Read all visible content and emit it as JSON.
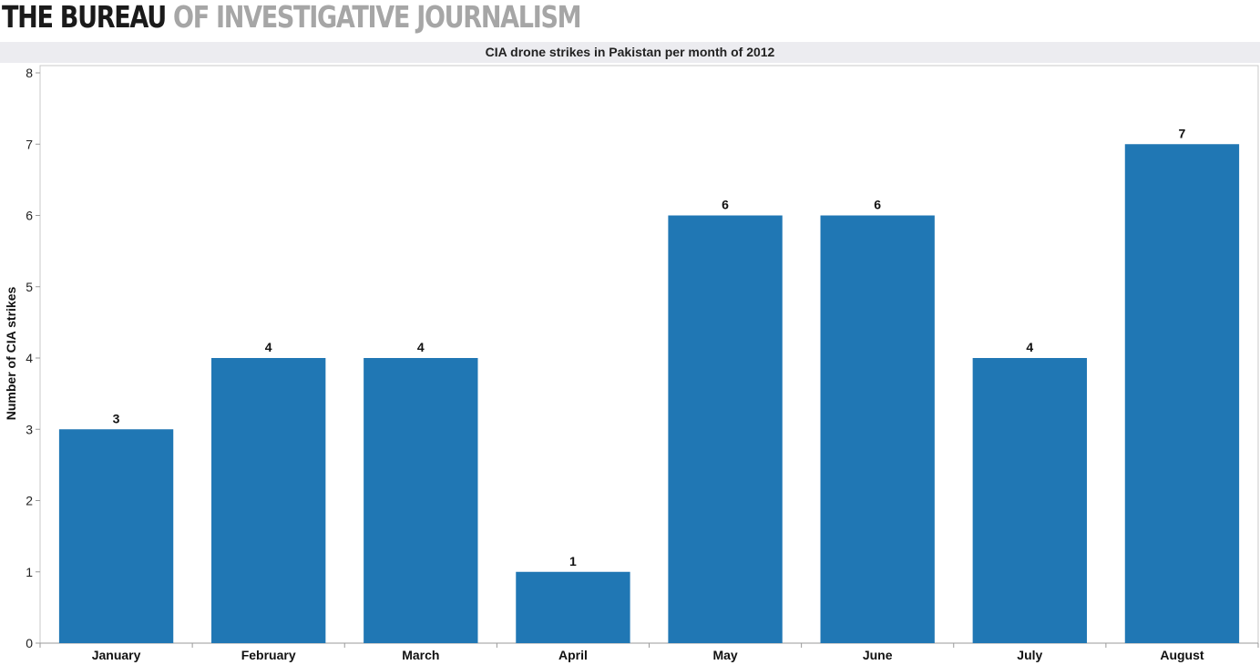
{
  "header": {
    "logo_bold": "THE BUREAU",
    "logo_light": " OF INVESTIGATIVE JOURNALISM"
  },
  "chart_data": {
    "type": "bar",
    "title": "CIA drone strikes in Pakistan per month of 2012",
    "xlabel": "",
    "ylabel": "Number of CIA strikes",
    "categories": [
      "January",
      "February",
      "March",
      "April",
      "May",
      "June",
      "July",
      "August"
    ],
    "values": [
      3,
      4,
      4,
      1,
      6,
      6,
      4,
      7
    ],
    "ylim": [
      0,
      8
    ],
    "yticks": [
      0,
      1,
      2,
      3,
      4,
      5,
      6,
      7,
      8
    ],
    "data_labels": true,
    "grid": false,
    "legend": "none",
    "bar_color": "#2077b4"
  }
}
